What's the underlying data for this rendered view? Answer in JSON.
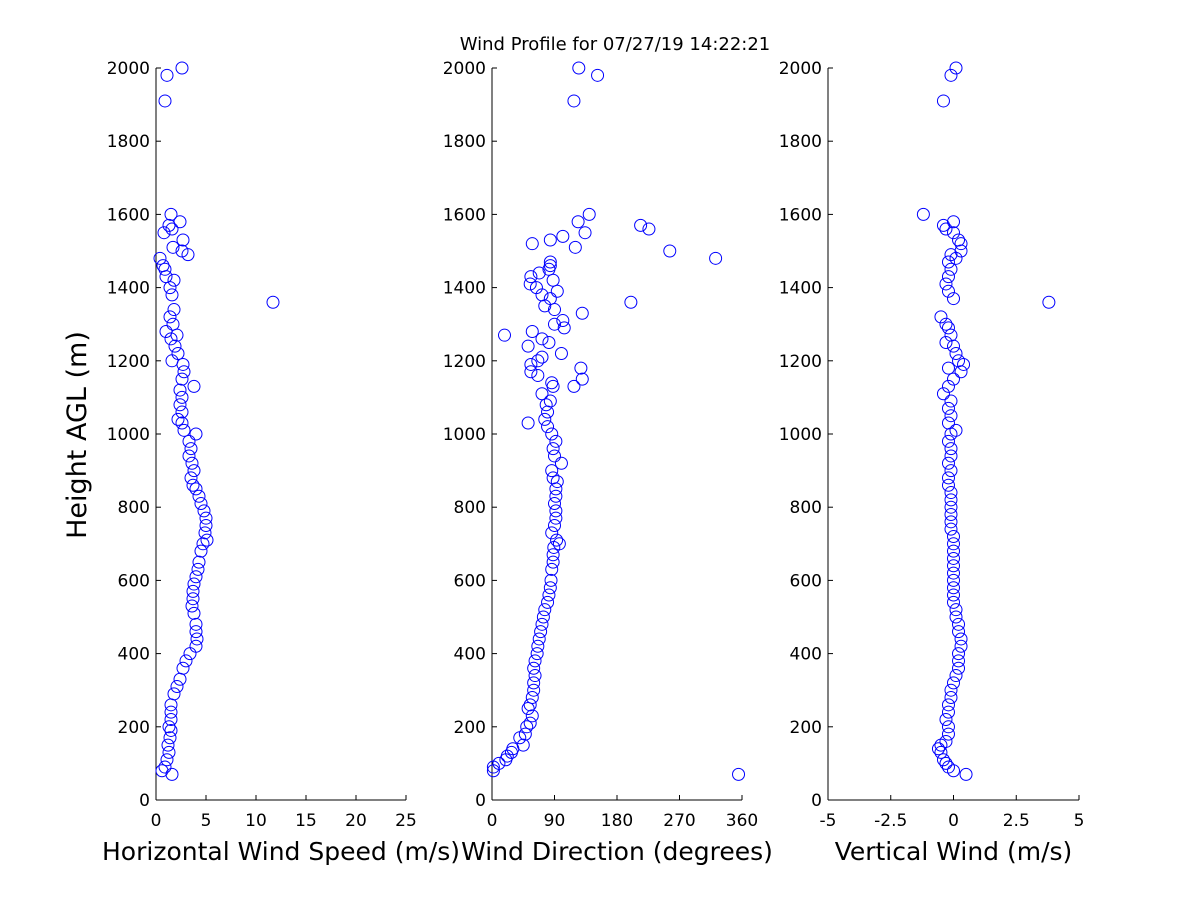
{
  "title": "Wind Profile for  07/27/19 14:22:21",
  "ylabel": "Height AGL (m)",
  "colors": {
    "marker": "#0000ff",
    "axis": "#000000",
    "background": "#ffffff"
  },
  "chart_data": [
    {
      "type": "scatter",
      "xlabel": "Horizontal Wind Speed (m/s)",
      "ylabel": "Height AGL (m)",
      "xlim": [
        0,
        25
      ],
      "ylim": [
        0,
        2000
      ],
      "xticks": [
        0,
        5,
        10,
        15,
        20,
        25
      ],
      "xtick_labels": [
        "0",
        "5",
        "10",
        "15",
        "20",
        "25"
      ],
      "yticks": [
        0,
        200,
        400,
        600,
        800,
        1000,
        1200,
        1400,
        1600,
        1800,
        2000
      ],
      "ytick_labels": [
        "0",
        "200",
        "400",
        "600",
        "800",
        "1000",
        "1200",
        "1400",
        "1600",
        "1800",
        "2000"
      ],
      "marker": "open-circle",
      "grid": false,
      "points": [
        [
          1.6,
          70
        ],
        [
          0.6,
          80
        ],
        [
          0.9,
          90
        ],
        [
          1.1,
          110
        ],
        [
          1.3,
          130
        ],
        [
          1.2,
          150
        ],
        [
          1.4,
          170
        ],
        [
          1.5,
          190
        ],
        [
          1.3,
          200
        ],
        [
          1.5,
          220
        ],
        [
          1.5,
          240
        ],
        [
          1.5,
          260
        ],
        [
          1.8,
          290
        ],
        [
          2.1,
          310
        ],
        [
          2.4,
          330
        ],
        [
          2.7,
          360
        ],
        [
          3.0,
          380
        ],
        [
          3.4,
          400
        ],
        [
          4.0,
          420
        ],
        [
          4.1,
          440
        ],
        [
          4.0,
          460
        ],
        [
          4.0,
          480
        ],
        [
          3.8,
          510
        ],
        [
          3.6,
          530
        ],
        [
          3.7,
          550
        ],
        [
          3.7,
          570
        ],
        [
          3.8,
          590
        ],
        [
          4.0,
          610
        ],
        [
          4.2,
          630
        ],
        [
          4.3,
          650
        ],
        [
          4.5,
          680
        ],
        [
          4.7,
          700
        ],
        [
          5.1,
          710
        ],
        [
          4.9,
          730
        ],
        [
          5.0,
          750
        ],
        [
          5.0,
          770
        ],
        [
          4.8,
          790
        ],
        [
          4.5,
          810
        ],
        [
          4.3,
          830
        ],
        [
          4.0,
          850
        ],
        [
          3.7,
          860
        ],
        [
          3.5,
          880
        ],
        [
          3.8,
          900
        ],
        [
          3.6,
          920
        ],
        [
          3.3,
          940
        ],
        [
          3.5,
          960
        ],
        [
          3.3,
          980
        ],
        [
          4.0,
          1000
        ],
        [
          2.8,
          1010
        ],
        [
          2.6,
          1030
        ],
        [
          2.2,
          1040
        ],
        [
          2.6,
          1060
        ],
        [
          2.4,
          1080
        ],
        [
          2.6,
          1100
        ],
        [
          2.4,
          1120
        ],
        [
          3.8,
          1130
        ],
        [
          2.6,
          1150
        ],
        [
          2.8,
          1170
        ],
        [
          2.7,
          1190
        ],
        [
          1.6,
          1200
        ],
        [
          2.2,
          1220
        ],
        [
          1.9,
          1240
        ],
        [
          1.5,
          1260
        ],
        [
          2.1,
          1270
        ],
        [
          1.0,
          1280
        ],
        [
          1.7,
          1300
        ],
        [
          1.4,
          1320
        ],
        [
          1.8,
          1340
        ],
        [
          11.7,
          1360
        ],
        [
          1.6,
          1380
        ],
        [
          1.4,
          1400
        ],
        [
          1.8,
          1420
        ],
        [
          1.0,
          1430
        ],
        [
          0.9,
          1450
        ],
        [
          0.7,
          1460
        ],
        [
          0.4,
          1480
        ],
        [
          3.2,
          1490
        ],
        [
          2.6,
          1500
        ],
        [
          1.7,
          1510
        ],
        [
          2.7,
          1530
        ],
        [
          0.8,
          1550
        ],
        [
          1.6,
          1560
        ],
        [
          1.3,
          1570
        ],
        [
          2.4,
          1580
        ],
        [
          1.5,
          1600
        ],
        [
          0.9,
          1910
        ],
        [
          1.1,
          1980
        ],
        [
          2.6,
          2000
        ]
      ]
    },
    {
      "type": "scatter",
      "xlabel": "Wind Direction (degrees)",
      "xlim": [
        0,
        360
      ],
      "ylim": [
        0,
        2000
      ],
      "xticks": [
        0,
        90,
        180,
        270,
        360
      ],
      "xtick_labels": [
        "0",
        "90",
        "180",
        "270",
        "360"
      ],
      "yticks": [
        0,
        200,
        400,
        600,
        800,
        1000,
        1200,
        1400,
        1600,
        1800,
        2000
      ],
      "ytick_labels": [
        "0",
        "200",
        "400",
        "600",
        "800",
        "1000",
        "1200",
        "1400",
        "1600",
        "1800",
        "2000"
      ],
      "marker": "open-circle",
      "grid": false,
      "points": [
        [
          355,
          70
        ],
        [
          2,
          80
        ],
        [
          2,
          90
        ],
        [
          10,
          100
        ],
        [
          20,
          110
        ],
        [
          22,
          120
        ],
        [
          28,
          130
        ],
        [
          30,
          140
        ],
        [
          45,
          150
        ],
        [
          40,
          170
        ],
        [
          48,
          180
        ],
        [
          50,
          200
        ],
        [
          55,
          210
        ],
        [
          58,
          230
        ],
        [
          52,
          250
        ],
        [
          55,
          260
        ],
        [
          58,
          280
        ],
        [
          60,
          300
        ],
        [
          60,
          320
        ],
        [
          62,
          340
        ],
        [
          60,
          360
        ],
        [
          62,
          380
        ],
        [
          65,
          400
        ],
        [
          66,
          420
        ],
        [
          68,
          440
        ],
        [
          70,
          460
        ],
        [
          72,
          480
        ],
        [
          74,
          500
        ],
        [
          76,
          520
        ],
        [
          80,
          540
        ],
        [
          82,
          560
        ],
        [
          84,
          580
        ],
        [
          85,
          600
        ],
        [
          86,
          630
        ],
        [
          88,
          650
        ],
        [
          88,
          670
        ],
        [
          89,
          690
        ],
        [
          97,
          700
        ],
        [
          93,
          710
        ],
        [
          86,
          730
        ],
        [
          90,
          750
        ],
        [
          92,
          770
        ],
        [
          92,
          790
        ],
        [
          90,
          810
        ],
        [
          92,
          830
        ],
        [
          92,
          850
        ],
        [
          94,
          870
        ],
        [
          88,
          880
        ],
        [
          86,
          900
        ],
        [
          100,
          920
        ],
        [
          90,
          940
        ],
        [
          88,
          960
        ],
        [
          92,
          980
        ],
        [
          86,
          1000
        ],
        [
          80,
          1020
        ],
        [
          52,
          1030
        ],
        [
          76,
          1040
        ],
        [
          80,
          1060
        ],
        [
          78,
          1080
        ],
        [
          84,
          1090
        ],
        [
          72,
          1110
        ],
        [
          88,
          1130
        ],
        [
          118,
          1130
        ],
        [
          86,
          1140
        ],
        [
          130,
          1150
        ],
        [
          66,
          1160
        ],
        [
          56,
          1170
        ],
        [
          128,
          1180
        ],
        [
          56,
          1190
        ],
        [
          66,
          1200
        ],
        [
          72,
          1210
        ],
        [
          100,
          1220
        ],
        [
          52,
          1240
        ],
        [
          82,
          1250
        ],
        [
          72,
          1260
        ],
        [
          18,
          1270
        ],
        [
          58,
          1280
        ],
        [
          104,
          1290
        ],
        [
          90,
          1300
        ],
        [
          102,
          1310
        ],
        [
          130,
          1330
        ],
        [
          90,
          1340
        ],
        [
          76,
          1350
        ],
        [
          200,
          1360
        ],
        [
          84,
          1370
        ],
        [
          72,
          1380
        ],
        [
          94,
          1390
        ],
        [
          64,
          1400
        ],
        [
          55,
          1410
        ],
        [
          88,
          1420
        ],
        [
          56,
          1430
        ],
        [
          68,
          1440
        ],
        [
          82,
          1450
        ],
        [
          84,
          1460
        ],
        [
          84,
          1470
        ],
        [
          322,
          1480
        ],
        [
          256,
          1500
        ],
        [
          120,
          1510
        ],
        [
          58,
          1520
        ],
        [
          84,
          1530
        ],
        [
          102,
          1540
        ],
        [
          134,
          1550
        ],
        [
          226,
          1560
        ],
        [
          214,
          1570
        ],
        [
          124,
          1580
        ],
        [
          140,
          1600
        ],
        [
          118,
          1910
        ],
        [
          152,
          1980
        ],
        [
          125,
          2000
        ]
      ]
    },
    {
      "type": "scatter",
      "xlabel": "Vertical Wind (m/s)",
      "xlim": [
        -5,
        5
      ],
      "ylim": [
        0,
        2000
      ],
      "xticks": [
        -5,
        -2.5,
        0,
        2.5,
        5
      ],
      "xtick_labels": [
        "-5",
        "-2.5",
        "0",
        "2.5",
        "5"
      ],
      "yticks": [
        0,
        200,
        400,
        600,
        800,
        1000,
        1200,
        1400,
        1600,
        1800,
        2000
      ],
      "ytick_labels": [
        "0",
        "200",
        "400",
        "600",
        "800",
        "1000",
        "1200",
        "1400",
        "1600",
        "1800",
        "2000"
      ],
      "marker": "open-circle",
      "grid": false,
      "points": [
        [
          0.5,
          70
        ],
        [
          0.0,
          80
        ],
        [
          -0.2,
          90
        ],
        [
          -0.3,
          100
        ],
        [
          -0.4,
          110
        ],
        [
          -0.5,
          130
        ],
        [
          -0.6,
          140
        ],
        [
          -0.5,
          150
        ],
        [
          -0.3,
          160
        ],
        [
          -0.2,
          180
        ],
        [
          -0.2,
          200
        ],
        [
          -0.3,
          220
        ],
        [
          -0.2,
          240
        ],
        [
          -0.2,
          260
        ],
        [
          -0.1,
          280
        ],
        [
          -0.1,
          300
        ],
        [
          0.0,
          320
        ],
        [
          0.1,
          340
        ],
        [
          0.2,
          360
        ],
        [
          0.2,
          380
        ],
        [
          0.2,
          400
        ],
        [
          0.3,
          420
        ],
        [
          0.3,
          440
        ],
        [
          0.2,
          460
        ],
        [
          0.2,
          480
        ],
        [
          0.1,
          500
        ],
        [
          0.1,
          520
        ],
        [
          0.0,
          540
        ],
        [
          0.0,
          560
        ],
        [
          0.0,
          580
        ],
        [
          0.0,
          600
        ],
        [
          0.0,
          620
        ],
        [
          0.0,
          640
        ],
        [
          0.0,
          660
        ],
        [
          0.0,
          680
        ],
        [
          0.0,
          700
        ],
        [
          0.0,
          720
        ],
        [
          -0.1,
          740
        ],
        [
          -0.1,
          760
        ],
        [
          -0.1,
          780
        ],
        [
          -0.1,
          800
        ],
        [
          -0.1,
          820
        ],
        [
          -0.1,
          840
        ],
        [
          -0.2,
          860
        ],
        [
          -0.2,
          880
        ],
        [
          -0.1,
          900
        ],
        [
          -0.2,
          920
        ],
        [
          -0.1,
          940
        ],
        [
          -0.1,
          960
        ],
        [
          -0.2,
          980
        ],
        [
          -0.1,
          1000
        ],
        [
          0.1,
          1010
        ],
        [
          -0.2,
          1030
        ],
        [
          -0.1,
          1050
        ],
        [
          -0.2,
          1070
        ],
        [
          -0.1,
          1090
        ],
        [
          -0.4,
          1110
        ],
        [
          -0.2,
          1130
        ],
        [
          0.0,
          1150
        ],
        [
          0.3,
          1170
        ],
        [
          -0.2,
          1180
        ],
        [
          0.4,
          1190
        ],
        [
          0.2,
          1200
        ],
        [
          0.1,
          1220
        ],
        [
          0.0,
          1240
        ],
        [
          -0.3,
          1250
        ],
        [
          -0.1,
          1270
        ],
        [
          -0.2,
          1290
        ],
        [
          -0.3,
          1300
        ],
        [
          -0.5,
          1320
        ],
        [
          3.8,
          1360
        ],
        [
          0.0,
          1370
        ],
        [
          -0.2,
          1390
        ],
        [
          -0.3,
          1410
        ],
        [
          -0.2,
          1430
        ],
        [
          -0.1,
          1450
        ],
        [
          -0.2,
          1470
        ],
        [
          0.1,
          1480
        ],
        [
          -0.1,
          1490
        ],
        [
          0.3,
          1500
        ],
        [
          0.3,
          1520
        ],
        [
          0.2,
          1530
        ],
        [
          0.0,
          1550
        ],
        [
          -0.3,
          1560
        ],
        [
          -0.4,
          1570
        ],
        [
          0.0,
          1580
        ],
        [
          -1.2,
          1600
        ],
        [
          -0.4,
          1910
        ],
        [
          -0.1,
          1980
        ],
        [
          0.1,
          2000
        ]
      ]
    }
  ]
}
